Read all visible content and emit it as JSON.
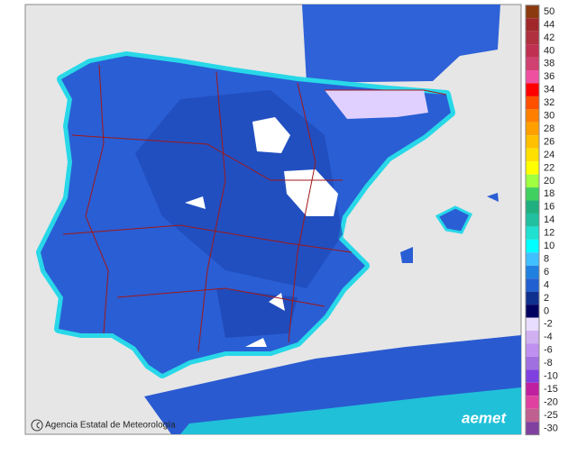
{
  "legend": {
    "levels": [
      {
        "value": 50,
        "color": "#8b3a0f"
      },
      {
        "value": 44,
        "color": "#a0282a"
      },
      {
        "value": 42,
        "color": "#b03040"
      },
      {
        "value": 40,
        "color": "#c03050"
      },
      {
        "value": 38,
        "color": "#d04070"
      },
      {
        "value": 36,
        "color": "#f050a0"
      },
      {
        "value": 34,
        "color": "#ff0000"
      },
      {
        "value": 32,
        "color": "#ff5000"
      },
      {
        "value": 30,
        "color": "#ff8000"
      },
      {
        "value": 28,
        "color": "#ffa000"
      },
      {
        "value": 26,
        "color": "#ffc000"
      },
      {
        "value": 24,
        "color": "#ffe000"
      },
      {
        "value": 22,
        "color": "#ffff00"
      },
      {
        "value": 20,
        "color": "#a0ff40"
      },
      {
        "value": 18,
        "color": "#40d060"
      },
      {
        "value": 16,
        "color": "#20b080"
      },
      {
        "value": 14,
        "color": "#20c0a0"
      },
      {
        "value": 12,
        "color": "#20e0d0"
      },
      {
        "value": 10,
        "color": "#00ffff"
      },
      {
        "value": 8,
        "color": "#40c0ff"
      },
      {
        "value": 6,
        "color": "#2080e0"
      },
      {
        "value": 4,
        "color": "#2060d0"
      },
      {
        "value": 2,
        "color": "#103090"
      },
      {
        "value": 0,
        "color": "#000060"
      },
      {
        "value": -2,
        "color": "#e8dcff"
      },
      {
        "value": -4,
        "color": "#d0b0f0"
      },
      {
        "value": -6,
        "color": "#c090f0"
      },
      {
        "value": -8,
        "color": "#a070e0"
      },
      {
        "value": -10,
        "color": "#8040e0"
      },
      {
        "value": -15,
        "color": "#c020a0"
      },
      {
        "value": -20,
        "color": "#e040a0"
      },
      {
        "value": -25,
        "color": "#c06090"
      },
      {
        "value": -30,
        "color": "#8040a0"
      }
    ]
  },
  "credit": "Agencia Estatal de Meteorología",
  "logo": "aemet"
}
